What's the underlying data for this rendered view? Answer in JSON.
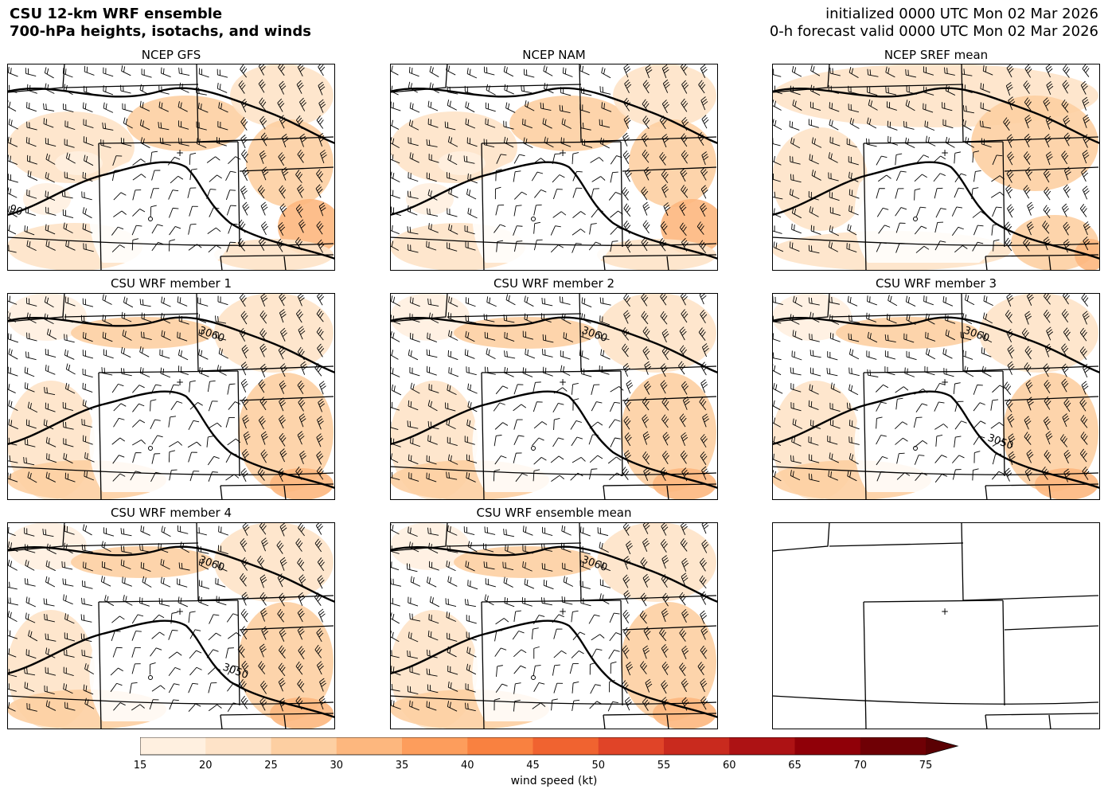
{
  "header": {
    "title_line1": "CSU 12-km WRF ensemble",
    "title_line2": "700-hPa heights, isotachs, and winds",
    "init_line": "initialized 0000 UTC Mon 02 Mar 2026",
    "valid_line": "0-h forecast valid 0000 UTC Mon 02 Mar 2026"
  },
  "panels": [
    {
      "title": "NCEP GFS",
      "contour_labels": [
        "90"
      ],
      "variant": "gfs"
    },
    {
      "title": "NCEP NAM",
      "contour_labels": [],
      "variant": "nam"
    },
    {
      "title": "NCEP SREF mean",
      "contour_labels": [],
      "variant": "sref"
    },
    {
      "title": "CSU WRF member 1",
      "contour_labels": [
        "3060"
      ],
      "variant": "wrf"
    },
    {
      "title": "CSU WRF member 2",
      "contour_labels": [
        "3060"
      ],
      "variant": "wrf"
    },
    {
      "title": "CSU WRF member 3",
      "contour_labels": [
        "3060",
        "3050"
      ],
      "variant": "wrf3"
    },
    {
      "title": "CSU WRF member 4",
      "contour_labels": [
        "3060",
        "3050"
      ],
      "variant": "wrf4"
    },
    {
      "title": "CSU WRF ensemble mean",
      "contour_labels": [
        "3060"
      ],
      "variant": "wrfmean"
    },
    {
      "title": "",
      "contour_labels": [],
      "variant": "empty"
    }
  ],
  "colorbar": {
    "label": "wind speed (kt)",
    "ticks": [
      "15",
      "20",
      "25",
      "30",
      "35",
      "40",
      "45",
      "50",
      "55",
      "60",
      "65",
      "70",
      "75"
    ],
    "colors": [
      "#fff0e0",
      "#fee3c8",
      "#fdcfa2",
      "#fdb77e",
      "#fd9d5c",
      "#f98140",
      "#f06330",
      "#e04428",
      "#c92a1e",
      "#ad1214",
      "#900008",
      "#6f0005"
    ],
    "extend": "max"
  }
}
